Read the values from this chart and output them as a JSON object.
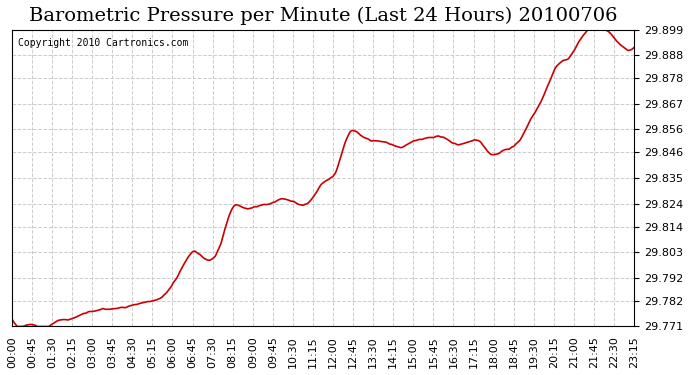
{
  "title": "Barometric Pressure per Minute (Last 24 Hours) 20100706",
  "copyright": "Copyright 2010 Cartronics.com",
  "line_color": "#cc0000",
  "bg_color": "#ffffff",
  "plot_bg_color": "#ffffff",
  "grid_color": "#cccccc",
  "grid_style": "--",
  "ylim": [
    29.771,
    29.899
  ],
  "yticks": [
    29.771,
    29.782,
    29.792,
    29.803,
    29.814,
    29.824,
    29.835,
    29.846,
    29.856,
    29.867,
    29.878,
    29.888,
    29.899
  ],
  "xtick_labels": [
    "00:00",
    "00:45",
    "01:30",
    "02:15",
    "03:00",
    "03:45",
    "04:30",
    "05:15",
    "06:00",
    "06:45",
    "07:30",
    "08:15",
    "09:00",
    "09:45",
    "10:30",
    "11:15",
    "12:00",
    "12:45",
    "13:30",
    "14:15",
    "15:00",
    "15:45",
    "16:30",
    "17:15",
    "18:00",
    "18:45",
    "19:30",
    "20:15",
    "21:00",
    "21:45",
    "22:30",
    "23:15"
  ],
  "title_fontsize": 14,
  "tick_fontsize": 8,
  "copyright_fontsize": 7,
  "line_width": 1.2
}
